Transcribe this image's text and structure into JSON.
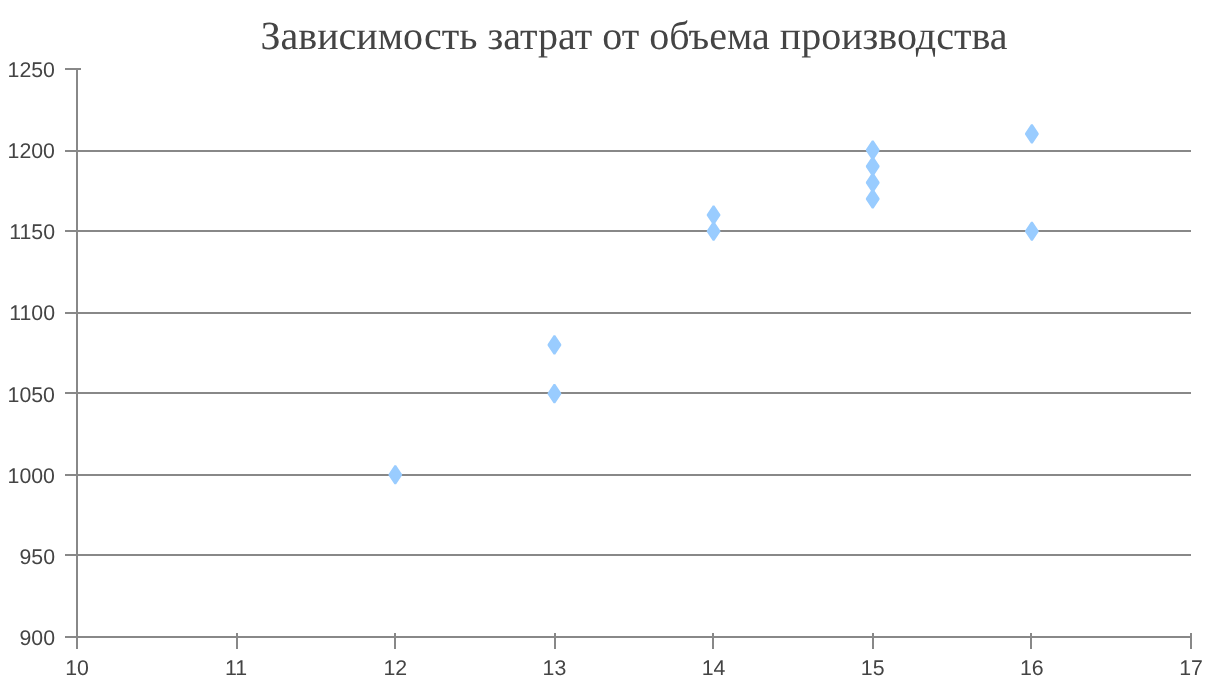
{
  "chart_data": {
    "type": "scatter",
    "title": "Зависимость затрат от объема производства",
    "x": [
      12,
      13,
      13,
      14,
      14,
      15,
      15,
      15,
      15,
      16,
      16
    ],
    "series": [
      {
        "color": "#99ccff",
        "values": [
          1000,
          1050,
          1080,
          1150,
          1160,
          1200,
          1190,
          1180,
          1170,
          1210,
          1150
        ]
      }
    ],
    "xlim": [
      10,
      17
    ],
    "xticks": [
      10,
      11,
      12,
      13,
      14,
      15,
      16,
      17
    ],
    "ylim": [
      900,
      1250
    ],
    "yticks": [
      900,
      950,
      1000,
      1050,
      1100,
      1150,
      1200,
      1250
    ],
    "grid": "y",
    "marker": "diamond"
  }
}
